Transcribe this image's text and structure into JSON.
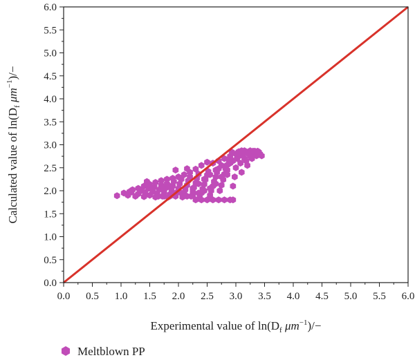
{
  "chart_data": {
    "type": "scatter",
    "xlabel": {
      "main": "Experimental value of ln(D",
      "sub": "f",
      "unit": " μm",
      "sup": "−1",
      "tail": ")/−"
    },
    "ylabel": {
      "main": "Calculated value of ln(D",
      "sub": "f",
      "unit": " μm",
      "sup": "−1",
      "tail": ")/−"
    },
    "xlim": [
      0.0,
      6.0
    ],
    "ylim": [
      0.0,
      6.0
    ],
    "xticks": [
      "0.0",
      "0.5",
      "1.0",
      "1.5",
      "2.0",
      "2.5",
      "3.0",
      "3.5",
      "4.0",
      "4.5",
      "5.0",
      "5.5",
      "6.0"
    ],
    "yticks": [
      "0.0",
      "0.5",
      "1.0",
      "1.5",
      "2.0",
      "2.5",
      "3.0",
      "3.5",
      "4.0",
      "4.5",
      "5.0",
      "5.5",
      "6.0"
    ],
    "grid": false,
    "legend": {
      "position": "bottom-left",
      "entries": [
        "Meltblown PP"
      ]
    },
    "series": [
      {
        "name": "Meltblown PP",
        "marker": "hexagon",
        "color": "#c04cb8",
        "points": [
          [
            0.93,
            1.89
          ],
          [
            1.05,
            1.95
          ],
          [
            1.12,
            1.9
          ],
          [
            1.18,
            1.97
          ],
          [
            1.25,
            1.88
          ],
          [
            1.3,
            1.93
          ],
          [
            1.35,
            2.0
          ],
          [
            1.4,
            1.87
          ],
          [
            1.42,
            1.96
          ],
          [
            1.48,
            2.05
          ],
          [
            1.5,
            1.9
          ],
          [
            1.55,
            1.98
          ],
          [
            1.58,
            2.08
          ],
          [
            1.6,
            1.86
          ],
          [
            1.63,
            1.94
          ],
          [
            1.66,
            2.02
          ],
          [
            1.7,
            2.12
          ],
          [
            1.72,
            1.88
          ],
          [
            1.75,
            1.97
          ],
          [
            1.78,
            2.06
          ],
          [
            1.8,
            2.15
          ],
          [
            1.82,
            1.86
          ],
          [
            1.85,
            1.92
          ],
          [
            1.88,
            2.0
          ],
          [
            1.9,
            2.1
          ],
          [
            1.92,
            2.2
          ],
          [
            1.95,
            1.88
          ],
          [
            1.97,
            1.96
          ],
          [
            2.0,
            2.05
          ],
          [
            2.02,
            2.15
          ],
          [
            2.05,
            2.25
          ],
          [
            2.07,
            1.86
          ],
          [
            2.1,
            1.93
          ],
          [
            2.12,
            2.02
          ],
          [
            2.15,
            2.12
          ],
          [
            2.17,
            2.22
          ],
          [
            2.2,
            2.3
          ],
          [
            2.22,
            1.88
          ],
          [
            2.25,
            1.97
          ],
          [
            2.27,
            2.07
          ],
          [
            2.3,
            2.17
          ],
          [
            2.32,
            2.27
          ],
          [
            2.35,
            2.36
          ],
          [
            2.37,
            1.86
          ],
          [
            2.4,
            1.95
          ],
          [
            2.42,
            2.04
          ],
          [
            2.45,
            2.14
          ],
          [
            2.47,
            2.24
          ],
          [
            2.5,
            2.34
          ],
          [
            2.52,
            2.42
          ],
          [
            2.55,
            1.9
          ],
          [
            2.57,
            2.0
          ],
          [
            2.6,
            2.1
          ],
          [
            2.62,
            2.2
          ],
          [
            2.65,
            2.3
          ],
          [
            2.67,
            2.4
          ],
          [
            2.7,
            2.48
          ],
          [
            2.72,
            2.0
          ],
          [
            2.75,
            2.12
          ],
          [
            2.78,
            2.24
          ],
          [
            2.8,
            2.36
          ],
          [
            2.82,
            2.48
          ],
          [
            2.85,
            2.56
          ],
          [
            2.88,
            2.66
          ],
          [
            2.9,
            2.75
          ],
          [
            2.93,
            2.84
          ],
          [
            2.95,
            2.1
          ],
          [
            2.98,
            2.3
          ],
          [
            3.0,
            2.5
          ],
          [
            3.02,
            2.7
          ],
          [
            3.05,
            2.85
          ],
          [
            3.08,
            2.6
          ],
          [
            3.1,
            2.4
          ],
          [
            3.12,
            2.78
          ],
          [
            3.15,
            2.87
          ],
          [
            3.18,
            2.65
          ],
          [
            3.2,
            2.55
          ],
          [
            3.22,
            2.8
          ],
          [
            3.25,
            2.87
          ],
          [
            3.28,
            2.7
          ],
          [
            3.3,
            2.78
          ],
          [
            3.33,
            2.86
          ],
          [
            3.36,
            2.76
          ],
          [
            3.4,
            2.84
          ],
          [
            3.45,
            2.76
          ],
          [
            2.5,
            2.62
          ],
          [
            2.4,
            2.55
          ],
          [
            2.3,
            2.47
          ],
          [
            2.2,
            2.4
          ],
          [
            2.1,
            2.35
          ],
          [
            2.0,
            2.3
          ],
          [
            1.9,
            2.27
          ],
          [
            1.8,
            2.25
          ],
          [
            1.7,
            2.22
          ],
          [
            1.6,
            2.18
          ],
          [
            1.5,
            2.14
          ],
          [
            1.4,
            2.1
          ],
          [
            1.3,
            2.05
          ],
          [
            1.2,
            2.02
          ],
          [
            1.15,
            1.98
          ],
          [
            1.45,
            2.2
          ],
          [
            1.95,
            2.45
          ],
          [
            2.15,
            2.48
          ],
          [
            2.6,
            2.6
          ],
          [
            2.7,
            2.65
          ],
          [
            2.8,
            2.7
          ],
          [
            3.1,
            2.87
          ],
          [
            3.2,
            2.82
          ],
          [
            3.35,
            2.8
          ],
          [
            3.0,
            2.8
          ],
          [
            1.75,
            2.05
          ],
          [
            1.85,
            2.1
          ],
          [
            2.25,
            2.05
          ],
          [
            2.35,
            2.15
          ],
          [
            2.45,
            2.25
          ],
          [
            2.55,
            2.35
          ],
          [
            2.65,
            2.45
          ],
          [
            2.75,
            2.55
          ],
          [
            2.85,
            2.45
          ],
          [
            2.95,
            2.65
          ],
          [
            1.65,
            1.88
          ],
          [
            1.75,
            1.88
          ],
          [
            1.85,
            1.88
          ],
          [
            1.95,
            1.92
          ],
          [
            2.05,
            1.95
          ],
          [
            2.15,
            1.88
          ],
          [
            2.25,
            1.9
          ],
          [
            2.35,
            1.95
          ],
          [
            2.45,
            2.0
          ],
          [
            2.55,
            2.05
          ],
          [
            2.65,
            2.15
          ],
          [
            2.75,
            2.3
          ],
          [
            2.85,
            2.35
          ],
          [
            2.9,
            2.6
          ],
          [
            3.05,
            2.75
          ],
          [
            3.15,
            2.7
          ],
          [
            3.25,
            2.75
          ],
          [
            3.38,
            2.86
          ],
          [
            3.42,
            2.8
          ],
          [
            3.3,
            2.86
          ]
        ]
      },
      {
        "name": "",
        "marker": "hexagon",
        "color": "#c04cb8",
        "points": [
          [
            2.3,
            1.8
          ],
          [
            2.4,
            1.8
          ],
          [
            2.5,
            1.8
          ],
          [
            2.6,
            1.8
          ],
          [
            2.7,
            1.8
          ],
          [
            2.8,
            1.8
          ],
          [
            2.9,
            1.8
          ],
          [
            2.95,
            1.8
          ]
        ]
      }
    ],
    "reference_line": {
      "color": "#d8322a",
      "points": [
        [
          0.0,
          0.0
        ],
        [
          6.0,
          6.0
        ]
      ]
    }
  }
}
